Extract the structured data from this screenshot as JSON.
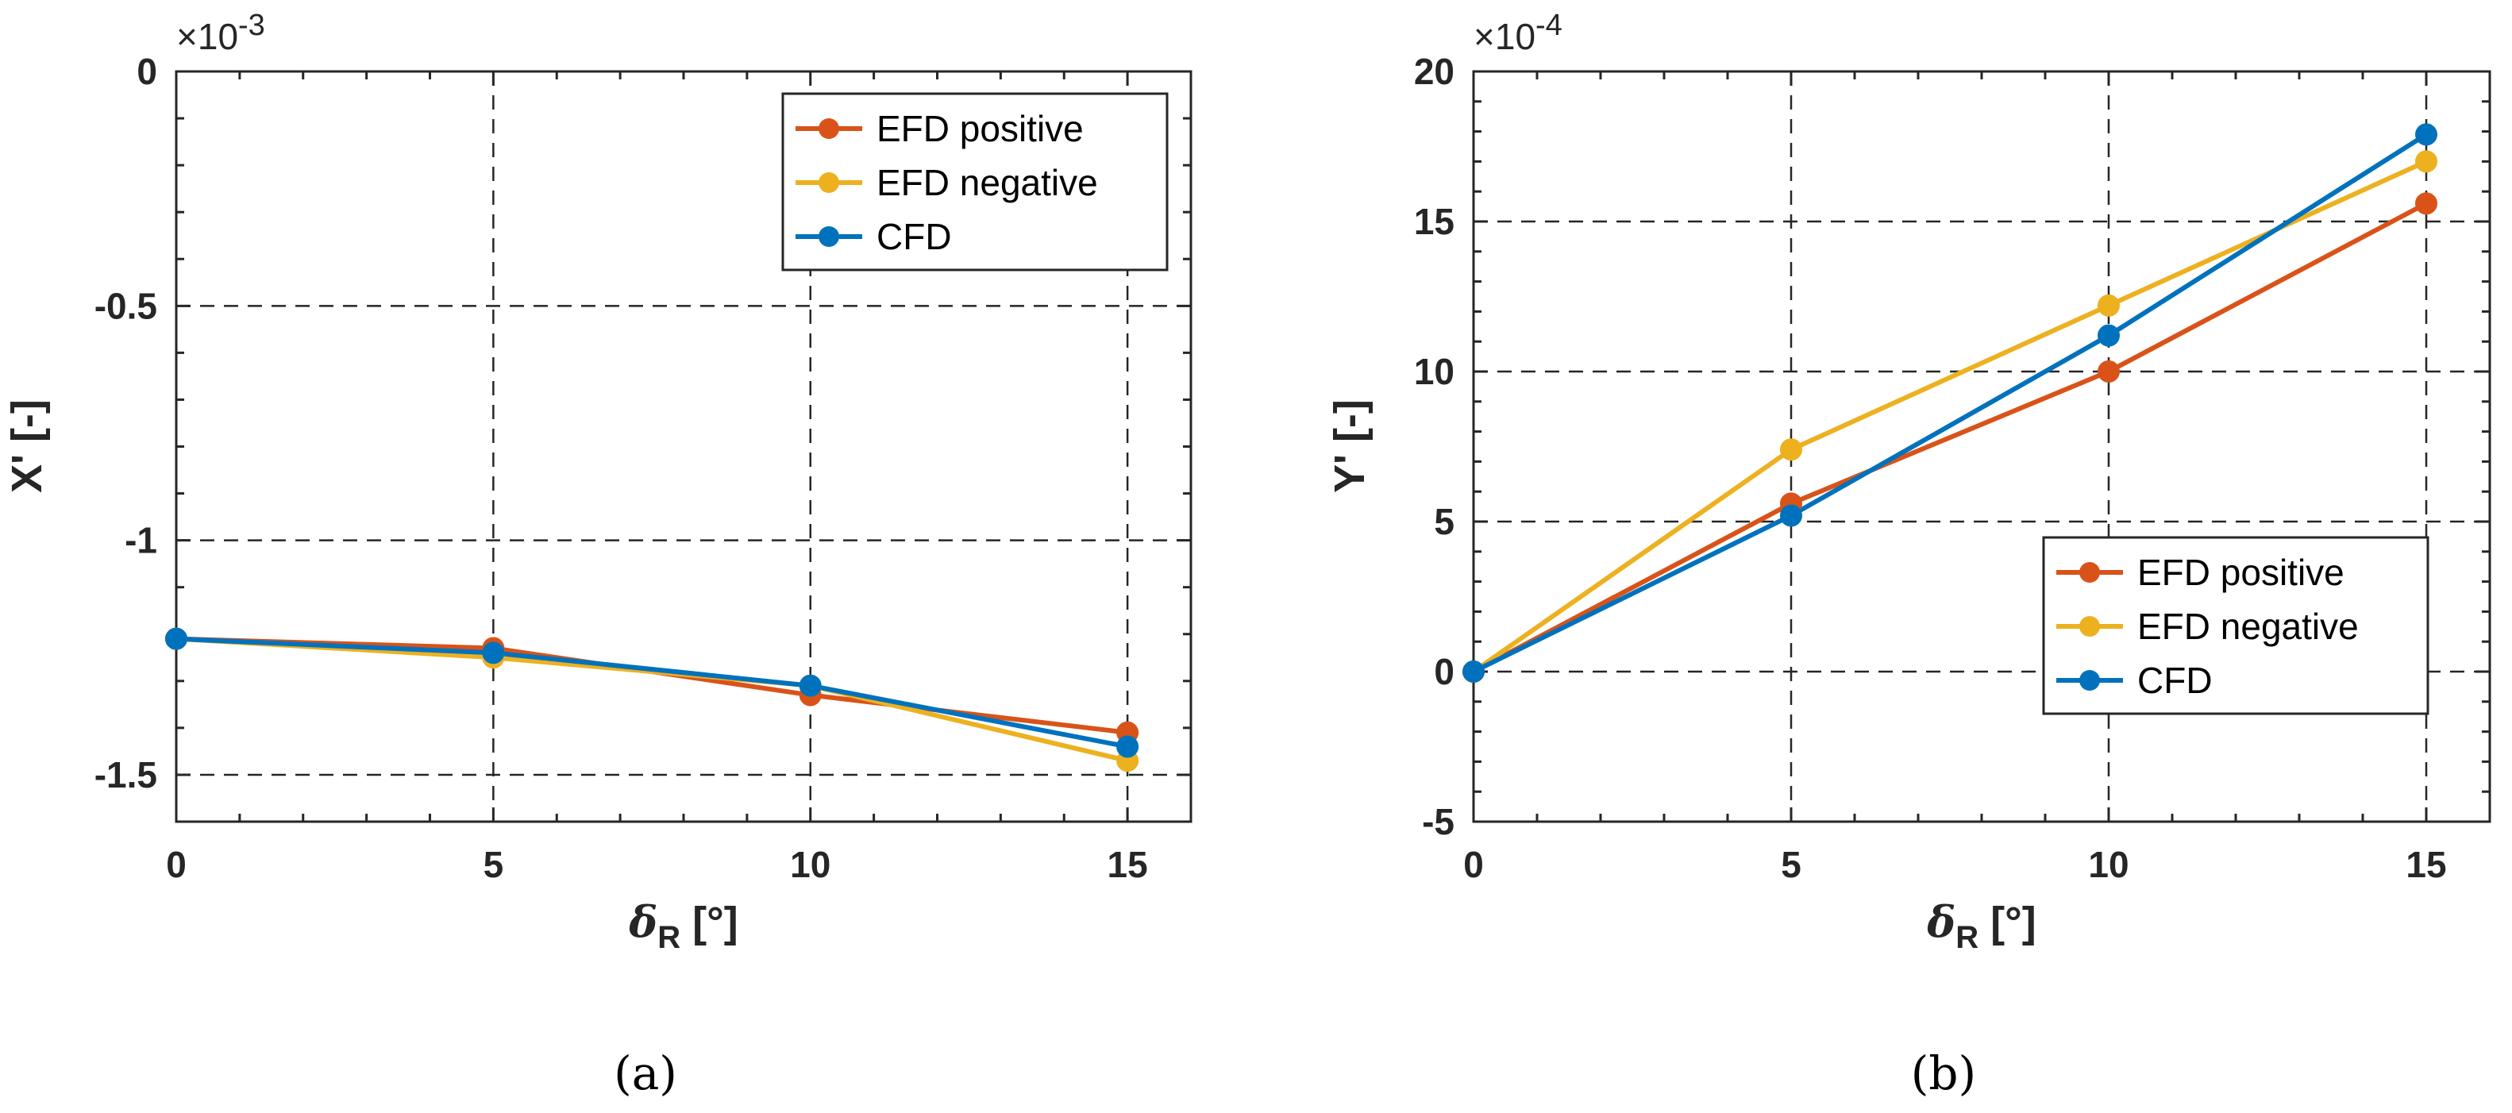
{
  "chart_data": [
    {
      "type": "line",
      "panel_label": "(a)",
      "xlabel_symbol": "δ",
      "xlabel_subscript": "R",
      "xlabel_unit": " [°]",
      "ylabel": "X' [-]",
      "exponent_prefix": "×10",
      "exponent_power": "-3",
      "x": [
        0,
        5,
        10,
        15
      ],
      "xlim": [
        0,
        16
      ],
      "ylim": [
        -1.6,
        0
      ],
      "xticks": [
        0,
        5,
        10,
        15
      ],
      "xtick_labels": [
        "0",
        "5",
        "10",
        "15"
      ],
      "yticks": [
        -1.5,
        -1,
        -0.5,
        0
      ],
      "ytick_labels": [
        "-1.5",
        "-1",
        "-0.5",
        "0"
      ],
      "grid": true,
      "legend_position": "top-right",
      "series": [
        {
          "name": "EFD positive",
          "color": "#D95319",
          "values": [
            -1.21,
            -1.23,
            -1.33,
            -1.41
          ]
        },
        {
          "name": "EFD negative",
          "color": "#EDB120",
          "values": [
            -1.21,
            -1.25,
            -1.31,
            -1.47
          ]
        },
        {
          "name": "CFD",
          "color": "#0072BD",
          "values": [
            -1.21,
            -1.24,
            -1.31,
            -1.44
          ]
        }
      ]
    },
    {
      "type": "line",
      "panel_label": "(b)",
      "xlabel_symbol": "δ",
      "xlabel_subscript": "R",
      "xlabel_unit": " [°]",
      "ylabel": "Y' [-]",
      "exponent_prefix": "×10",
      "exponent_power": "-4",
      "x": [
        0,
        5,
        10,
        15
      ],
      "xlim": [
        0,
        16
      ],
      "ylim": [
        -5,
        20
      ],
      "xticks": [
        0,
        5,
        10,
        15
      ],
      "xtick_labels": [
        "0",
        "5",
        "10",
        "15"
      ],
      "yticks": [
        -5,
        0,
        5,
        10,
        15,
        20
      ],
      "ytick_labels": [
        "-5",
        "0",
        "5",
        "10",
        "15",
        "20"
      ],
      "grid": true,
      "legend_position": "bottom-right",
      "series": [
        {
          "name": "EFD positive",
          "color": "#D95319",
          "values": [
            0,
            5.6,
            10.0,
            15.6
          ]
        },
        {
          "name": "EFD negative",
          "color": "#EDB120",
          "values": [
            0,
            7.4,
            12.2,
            17.0
          ]
        },
        {
          "name": "CFD",
          "color": "#0072BD",
          "values": [
            0,
            5.2,
            11.2,
            17.9
          ]
        }
      ]
    }
  ]
}
